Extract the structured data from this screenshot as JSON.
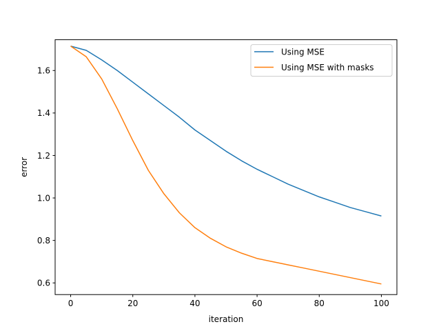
{
  "chart_data": {
    "type": "line",
    "xlabel": "iteration",
    "ylabel": "error",
    "xlim": [
      -5,
      105
    ],
    "ylim": [
      0.545,
      1.745
    ],
    "x_ticks": [
      0,
      20,
      40,
      60,
      80,
      100
    ],
    "y_ticks": [
      0.6,
      0.8,
      1.0,
      1.2,
      1.4,
      1.6
    ],
    "y_tick_labels": [
      "0.6",
      "0.8",
      "1.0",
      "1.2",
      "1.4",
      "1.6"
    ],
    "grid": false,
    "legend_position": "upper-right",
    "x": [
      0,
      5,
      10,
      15,
      20,
      25,
      30,
      35,
      40,
      45,
      50,
      55,
      60,
      65,
      70,
      75,
      80,
      85,
      90,
      95,
      100
    ],
    "series": [
      {
        "name": "Using MSE",
        "color": "#1f77b4",
        "values": [
          1.715,
          1.695,
          1.65,
          1.6,
          1.545,
          1.49,
          1.435,
          1.38,
          1.32,
          1.27,
          1.22,
          1.175,
          1.135,
          1.1,
          1.065,
          1.035,
          1.005,
          0.98,
          0.955,
          0.935,
          0.915
        ]
      },
      {
        "name": "Using MSE with masks",
        "color": "#ff7f0e",
        "values": [
          1.715,
          1.665,
          1.56,
          1.42,
          1.27,
          1.13,
          1.02,
          0.93,
          0.86,
          0.81,
          0.77,
          0.74,
          0.715,
          0.7,
          0.685,
          0.67,
          0.655,
          0.64,
          0.625,
          0.61,
          0.595
        ]
      }
    ]
  }
}
